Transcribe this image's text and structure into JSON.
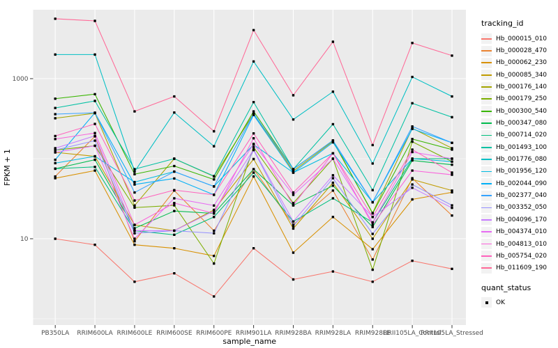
{
  "figure": {
    "background": "#FFFFFF",
    "panel_background": "#EBEBEB",
    "grid_color": "#FFFFFF",
    "tick_label_color": "#4D4D4D",
    "axis_title_color": "#000000",
    "point_color": "#000000",
    "legend_key_fill": "#F2F2F2"
  },
  "legend": {
    "title": "tracking_id"
  },
  "quant_legend": {
    "title": "quant_status",
    "items": [
      {
        "label": "OK",
        "key": "black-square"
      }
    ]
  },
  "chart_data": {
    "type": "line",
    "title": "",
    "xlabel": "sample_name",
    "ylabel": "FPKM + 1",
    "y_scale": "log10",
    "ylim": [
      0.84,
      7200
    ],
    "y_major_ticks": [
      {
        "label": "1000",
        "value": 1000
      },
      {
        "label": "10",
        "value": 10
      }
    ],
    "y_minor_gridlines": [
      100,
      1
    ],
    "grid": true,
    "legend_position": "right",
    "marker": "small black square (quant_status OK)",
    "categories": [
      "PB350LA",
      "RRIM600LA",
      "RRIM600LE",
      "RRIM600SE",
      "RRIM600PE",
      "RRIM901LA",
      "RRIM928BA",
      "RRIM928LA",
      "RRIM928LE",
      "RRII105LA_Control",
      "RRII105LA_Stressed"
    ],
    "series": [
      {
        "name": "Hb_000015_010",
        "color": "#F8766D",
        "values": [
          10,
          8.4,
          2.9,
          3.7,
          1.9,
          7.6,
          3.1,
          3.9,
          2.9,
          5.3,
          4.2
        ]
      },
      {
        "name": "Hb_000028_470",
        "color": "#EA8331",
        "values": [
          60,
          190,
          9.3,
          40,
          12.6,
          74,
          15,
          40,
          5.5,
          57,
          19.5
        ]
      },
      {
        "name": "Hb_000062_230",
        "color": "#D89000",
        "values": [
          57,
          71,
          8.4,
          7.6,
          6.1,
          60,
          6.7,
          18.7,
          7.4,
          31,
          38
        ]
      },
      {
        "name": "Hb_000085_340",
        "color": "#C09B00",
        "values": [
          120,
          107,
          14.9,
          12.6,
          22.9,
          99,
          13.4,
          50,
          10,
          55,
          40
        ]
      },
      {
        "name": "Hb_000176_140",
        "color": "#A3A500",
        "values": [
          320,
          370,
          26,
          100,
          60,
          365,
          70,
          165,
          21,
          240,
          135
        ]
      },
      {
        "name": "Hb_000179_250",
        "color": "#7CAE00",
        "values": [
          128,
          145,
          24.5,
          26.1,
          4.9,
          139,
          27.9,
          100,
          4.1,
          163,
          92
        ]
      },
      {
        "name": "Hb_000300_540",
        "color": "#39B600",
        "values": [
          562,
          640,
          64,
          81,
          55,
          390,
          74,
          169,
          20.7,
          176,
          130
        ]
      },
      {
        "name": "Hb_000347_080",
        "color": "#00BB4E",
        "values": [
          75,
          97,
          13.5,
          22.2,
          20.7,
          74,
          26.1,
          46,
          14,
          95,
          84
        ]
      },
      {
        "name": "Hb_000714_020",
        "color": "#00BF7D",
        "values": [
          75,
          79,
          12.6,
          11.2,
          18.7,
          67,
          16.4,
          32,
          16,
          100,
          100
        ]
      },
      {
        "name": "Hb_001493_100",
        "color": "#00C1A3",
        "values": [
          430,
          527,
          74,
          100,
          60.6,
          509,
          74,
          270,
          40.5,
          493,
          330
        ]
      },
      {
        "name": "Hb_001776_080",
        "color": "#00BFC4",
        "values": [
          2000,
          2000,
          69,
          377,
          143,
          1640,
          309,
          687,
          87,
          1050,
          600
        ]
      },
      {
        "name": "Hb_001956_120",
        "color": "#00BAE0",
        "values": [
          88,
          107,
          51,
          69,
          45,
          150,
          67,
          117,
          28.6,
          100,
          92
        ]
      },
      {
        "name": "Hb_002044_090",
        "color": "#00B0F6",
        "values": [
          97,
          375,
          47.6,
          56.6,
          35.4,
          352,
          67,
          160,
          28.6,
          236,
          158
        ]
      },
      {
        "name": "Hb_002377_040",
        "color": "#35A2FF",
        "values": [
          360,
          375,
          37.8,
          69,
          45,
          365,
          74,
          169,
          28.6,
          253,
          158
        ]
      },
      {
        "name": "Hb_003352_050",
        "color": "#9590FF",
        "values": [
          128,
          168,
          11.7,
          12.6,
          11.7,
          128,
          14.4,
          57,
          11.5,
          47.6,
          26.1
        ]
      },
      {
        "name": "Hb_004096_170",
        "color": "#C77CFF",
        "values": [
          135,
          193,
          12.6,
          12.6,
          22.2,
          130,
          16.4,
          62,
          18.7,
          43.3,
          24.3
        ]
      },
      {
        "name": "Hb_004374_010",
        "color": "#E76BF3",
        "values": [
          120,
          145,
          10,
          32,
          26,
          153,
          35.4,
          100,
          16,
          121,
          100
        ]
      },
      {
        "name": "Hb_004813_010",
        "color": "#FA62DB",
        "values": [
          176,
          209,
          14.9,
          27.9,
          20.7,
          180,
          26.1,
          117,
          14.9,
          71,
          63
        ]
      },
      {
        "name": "Hb_005754_020",
        "color": "#FF62BC",
        "values": [
          192,
          272,
          30,
          40.5,
          35.4,
          207,
          37.8,
          117,
          18.7,
          130,
          67
        ]
      },
      {
        "name": "Hb_011609_190",
        "color": "#FF6A98",
        "values": [
          5600,
          5270,
          390,
          600,
          220,
          4040,
          620,
          2890,
          148,
          2790,
          1940
        ]
      }
    ]
  }
}
